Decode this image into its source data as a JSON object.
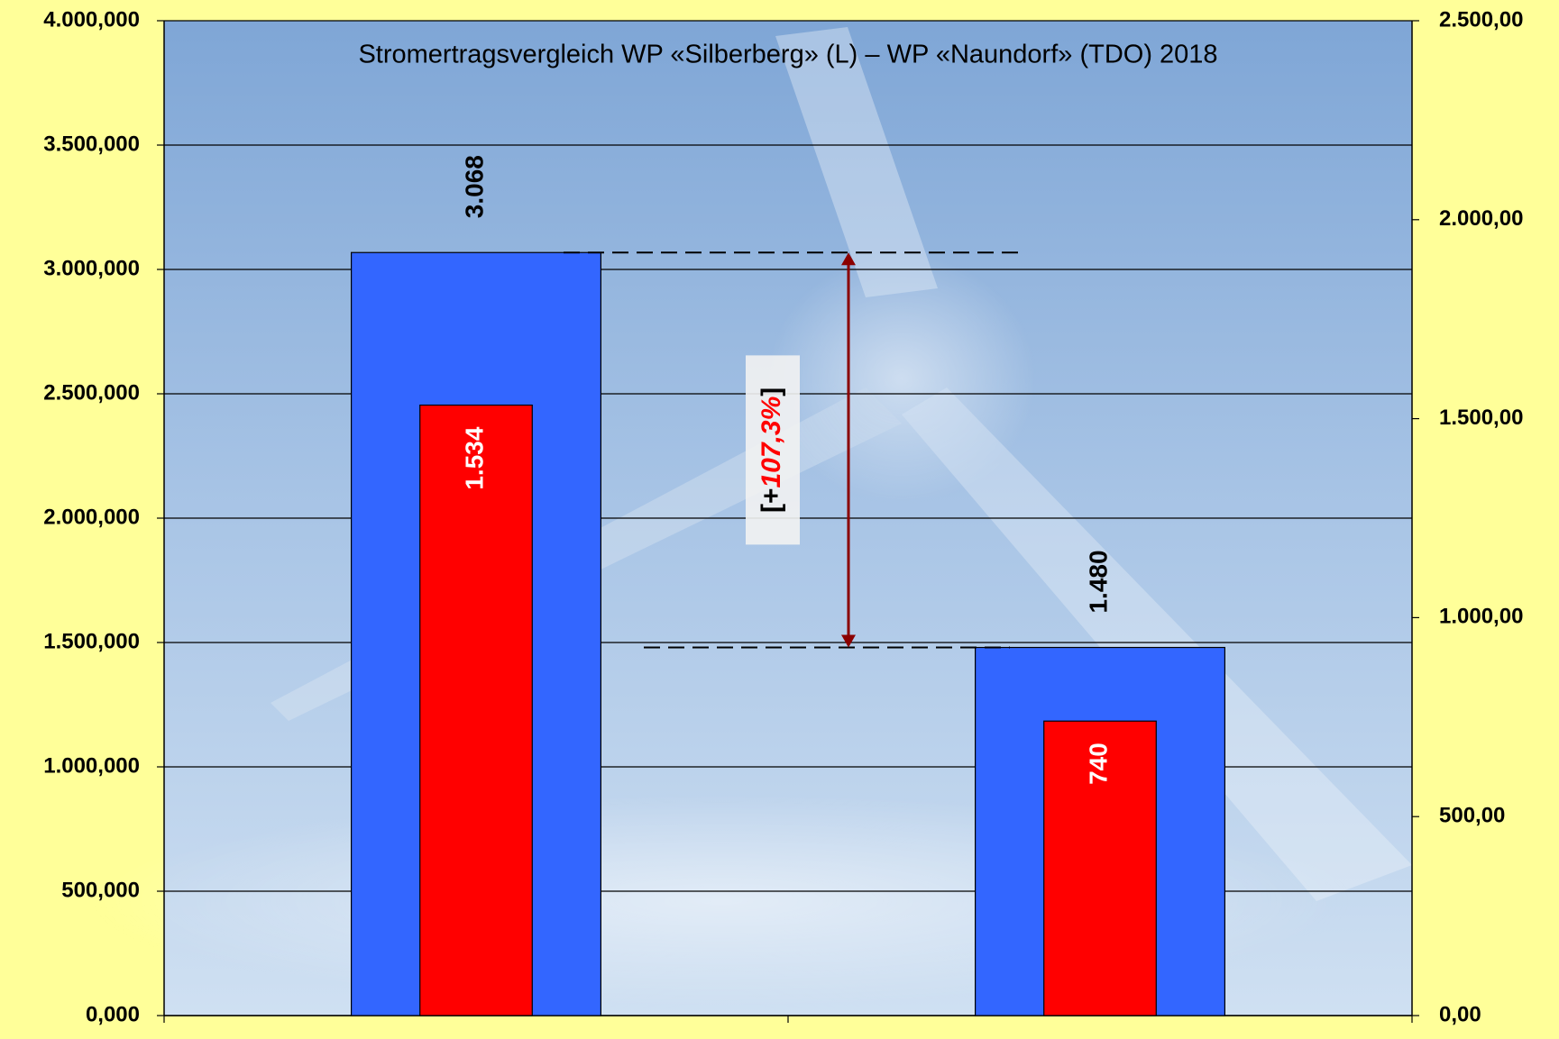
{
  "chart_data": {
    "type": "bar",
    "title": "Stromertragsvergleich WP «Silberberg» (L) – WP «Naundorf» (TDO)  2018",
    "categories": [
      null,
      null
    ],
    "series": [
      {
        "color": "#3366ff",
        "values": [
          3068000,
          1480000
        ],
        "value_labels": [
          "3.068",
          "1.480"
        ]
      },
      {
        "color": "#ff0000",
        "axis": "y2",
        "values": [
          1534,
          740
        ],
        "value_labels": [
          "1.534",
          "740"
        ]
      }
    ],
    "ylim": [
      0,
      4000000
    ],
    "yticks": [
      {
        "value": 0,
        "label": "0,000"
      },
      {
        "value": 500000,
        "label": "500,000"
      },
      {
        "value": 1000000,
        "label": "1.000,000"
      },
      {
        "value": 1500000,
        "label": "1.500,000"
      },
      {
        "value": 2000000,
        "label": "2.000,000"
      },
      {
        "value": 2500000,
        "label": "2.500,000"
      },
      {
        "value": 3000000,
        "label": "3.000,000"
      },
      {
        "value": 3500000,
        "label": "3.500,000"
      },
      {
        "value": 4000000,
        "label": "4.000,000"
      }
    ],
    "y2lim": [
      0,
      2500
    ],
    "y2ticks": [
      {
        "value": 0,
        "label": "0,00"
      },
      {
        "value": 500,
        "label": "500,00"
      },
      {
        "value": 1000,
        "label": "1.000,00"
      },
      {
        "value": 1500,
        "label": "1.500,00"
      },
      {
        "value": 2000,
        "label": "2.000,00"
      },
      {
        "value": 2500,
        "label": "2.500,00"
      }
    ],
    "grid": true,
    "annotation": {
      "text_parts": [
        "[+",
        "107,3%",
        "]"
      ]
    }
  }
}
